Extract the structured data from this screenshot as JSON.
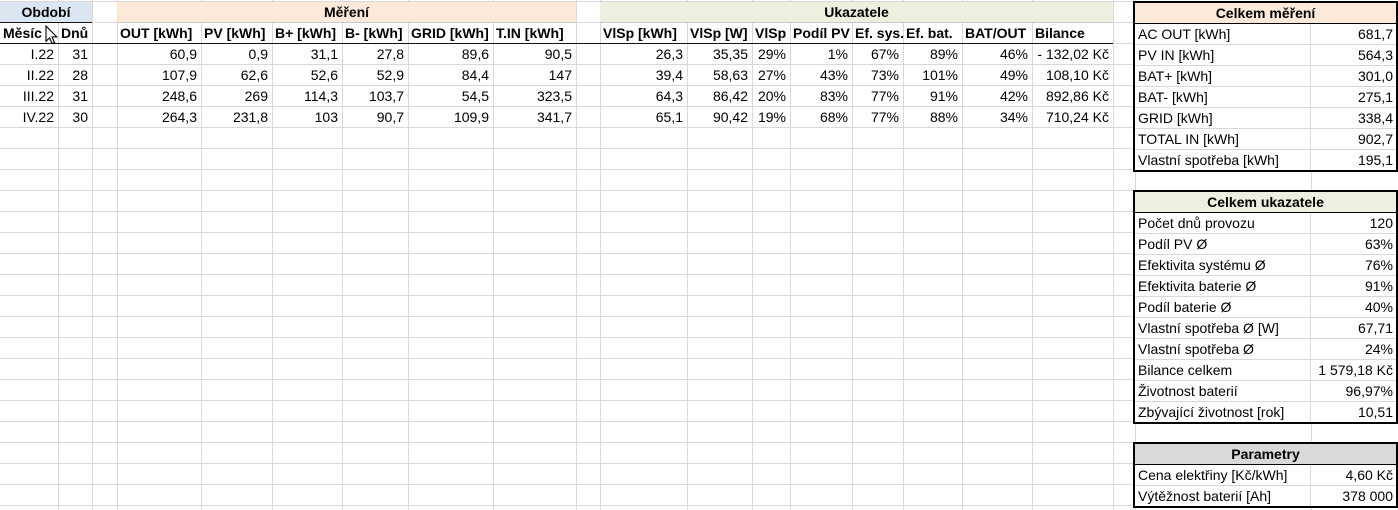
{
  "colors": {
    "band_obdobi": "#DCE6F1",
    "band_mereni": "#FDE9D9",
    "band_ukazatele": "#EBF1DE",
    "panel_parametry": "#D9D9D9",
    "gridline": "#D8D8D8"
  },
  "bands": {
    "obdobi": "Období",
    "mereni": "Měření",
    "ukazatele": "Ukazatele"
  },
  "columns": [
    "Měsíc",
    "Dnů",
    "OUT [kWh]",
    "PV [kWh]",
    "B+ [kWh]",
    "B- [kWh]",
    "GRID [kWh]",
    "T.IN [kWh]",
    "VlSp [kWh]",
    "VlSp [W]",
    "VlSp",
    "Podíl PV",
    "Ef. sys.",
    "Ef. bat.",
    "BAT/OUT",
    "Bilance"
  ],
  "rows": [
    [
      "I.22",
      "31",
      "60,9",
      "0,9",
      "31,1",
      "27,8",
      "89,6",
      "90,5",
      "26,3",
      "35,35",
      "29%",
      "1%",
      "67%",
      "89%",
      "46%",
      "- 132,02 Kč"
    ],
    [
      "II.22",
      "28",
      "107,9",
      "62,6",
      "52,6",
      "52,9",
      "84,4",
      "147",
      "39,4",
      "58,63",
      "27%",
      "43%",
      "73%",
      "101%",
      "49%",
      "108,10 Kč"
    ],
    [
      "III.22",
      "31",
      "248,6",
      "269",
      "114,3",
      "103,7",
      "54,5",
      "323,5",
      "64,3",
      "86,42",
      "20%",
      "83%",
      "77%",
      "91%",
      "42%",
      "892,86 Kč"
    ],
    [
      "IV.22",
      "30",
      "264,3",
      "231,8",
      "103",
      "90,7",
      "109,9",
      "341,7",
      "65,1",
      "90,42",
      "19%",
      "68%",
      "77%",
      "88%",
      "34%",
      "710,24 Kč"
    ]
  ],
  "panels": [
    {
      "id": "celkem-mereni",
      "title": "Celkem měření",
      "color": "#FDE9D9",
      "rows": [
        [
          "AC OUT [kWh]",
          "681,7"
        ],
        [
          "PV IN [kWh]",
          "564,3"
        ],
        [
          "BAT+ [kWh]",
          "301,0"
        ],
        [
          "BAT- [kWh]",
          "275,1"
        ],
        [
          "GRID [kWh]",
          "338,4"
        ],
        [
          "TOTAL IN [kWh]",
          "902,7"
        ],
        [
          "Vlastní spotřeba [kWh]",
          "195,1"
        ]
      ]
    },
    {
      "id": "celkem-ukazatele",
      "title": "Celkem ukazatele",
      "color": "#EBF1DE",
      "rows": [
        [
          "Počet dnů provozu",
          "120"
        ],
        [
          "Podíl PV Ø",
          "63%"
        ],
        [
          "Efektivita systému Ø",
          "76%"
        ],
        [
          "Efektivita baterie Ø",
          "91%"
        ],
        [
          "Podíl baterie Ø",
          "40%"
        ],
        [
          "Vlastní spotřeba Ø [W]",
          "67,71"
        ],
        [
          "Vlastní spotřeba Ø",
          "24%"
        ],
        [
          "Bilance celkem",
          "1 579,18 Kč"
        ],
        [
          "Životnost baterií",
          "96,97%"
        ],
        [
          "Zbývající životnost [rok]",
          "10,51"
        ]
      ]
    },
    {
      "id": "parametry",
      "title": "Parametry",
      "color": "#D9D9D9",
      "rows": [
        [
          "Cena elektřiny [Kč/kWh]",
          "4,60 Kč"
        ],
        [
          "Výtěžnost baterií [Ah]",
          "378 000"
        ]
      ]
    }
  ]
}
